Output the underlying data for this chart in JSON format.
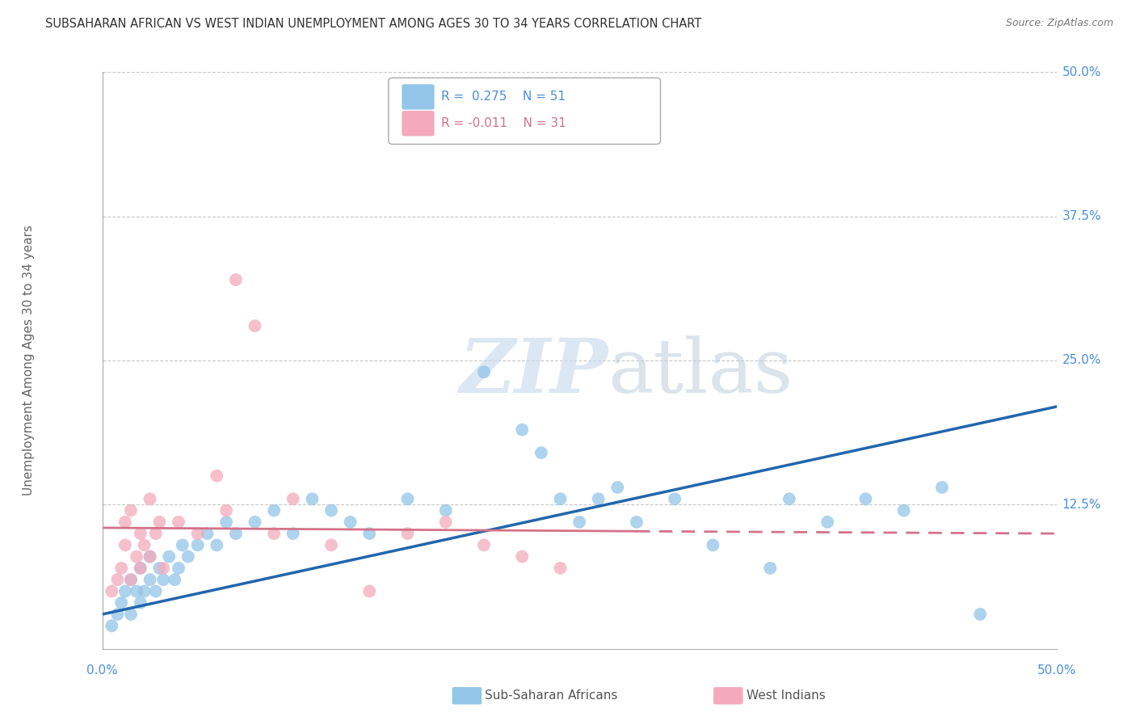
{
  "title": "SUBSAHARAN AFRICAN VS WEST INDIAN UNEMPLOYMENT AMONG AGES 30 TO 34 YEARS CORRELATION CHART",
  "source": "Source: ZipAtlas.com",
  "ylabel": "Unemployment Among Ages 30 to 34 years",
  "xlim": [
    0,
    0.5
  ],
  "ylim": [
    0,
    0.5
  ],
  "blue_R": 0.275,
  "blue_N": 51,
  "pink_R": -0.011,
  "pink_N": 31,
  "blue_color": "#92C5E8",
  "pink_color": "#F4AABC",
  "blue_line_color": "#2166AC",
  "pink_line_color": "#D4728A",
  "grid_color": "#C8C8C8",
  "watermark_color": "#D8E8F5",
  "blue_scatter_x": [
    0.005,
    0.008,
    0.01,
    0.012,
    0.015,
    0.015,
    0.018,
    0.02,
    0.02,
    0.022,
    0.025,
    0.025,
    0.028,
    0.03,
    0.032,
    0.035,
    0.038,
    0.04,
    0.042,
    0.045,
    0.05,
    0.055,
    0.06,
    0.065,
    0.07,
    0.08,
    0.09,
    0.1,
    0.11,
    0.12,
    0.13,
    0.14,
    0.16,
    0.18,
    0.2,
    0.22,
    0.23,
    0.24,
    0.25,
    0.26,
    0.27,
    0.28,
    0.3,
    0.32,
    0.35,
    0.36,
    0.38,
    0.4,
    0.42,
    0.44,
    0.46
  ],
  "blue_scatter_y": [
    0.02,
    0.03,
    0.04,
    0.05,
    0.03,
    0.06,
    0.05,
    0.04,
    0.07,
    0.05,
    0.06,
    0.08,
    0.05,
    0.07,
    0.06,
    0.08,
    0.06,
    0.07,
    0.09,
    0.08,
    0.09,
    0.1,
    0.09,
    0.11,
    0.1,
    0.11,
    0.12,
    0.1,
    0.13,
    0.12,
    0.11,
    0.1,
    0.13,
    0.12,
    0.24,
    0.19,
    0.17,
    0.13,
    0.11,
    0.13,
    0.14,
    0.11,
    0.13,
    0.09,
    0.07,
    0.13,
    0.11,
    0.13,
    0.12,
    0.14,
    0.03
  ],
  "pink_scatter_x": [
    0.005,
    0.008,
    0.01,
    0.012,
    0.012,
    0.015,
    0.015,
    0.018,
    0.02,
    0.02,
    0.022,
    0.025,
    0.025,
    0.028,
    0.03,
    0.032,
    0.04,
    0.05,
    0.06,
    0.065,
    0.07,
    0.08,
    0.09,
    0.1,
    0.12,
    0.14,
    0.16,
    0.18,
    0.2,
    0.22,
    0.24
  ],
  "pink_scatter_y": [
    0.05,
    0.06,
    0.07,
    0.09,
    0.11,
    0.06,
    0.12,
    0.08,
    0.07,
    0.1,
    0.09,
    0.08,
    0.13,
    0.1,
    0.11,
    0.07,
    0.11,
    0.1,
    0.15,
    0.12,
    0.32,
    0.28,
    0.1,
    0.13,
    0.09,
    0.05,
    0.1,
    0.11,
    0.09,
    0.08,
    0.07
  ],
  "blue_line_x0": 0.0,
  "blue_line_y0": 0.03,
  "blue_line_x1": 0.5,
  "blue_line_y1": 0.21,
  "pink_line_x0": 0.0,
  "pink_line_y0": 0.105,
  "pink_line_x1_solid": 0.28,
  "pink_line_y1_solid": 0.102,
  "pink_line_x1_dashed": 0.5,
  "pink_line_y1_dashed": 0.1,
  "background_color": "#FFFFFF",
  "title_color": "#333333",
  "axis_label_color": "#666666",
  "tick_label_color": "#4A90D9"
}
